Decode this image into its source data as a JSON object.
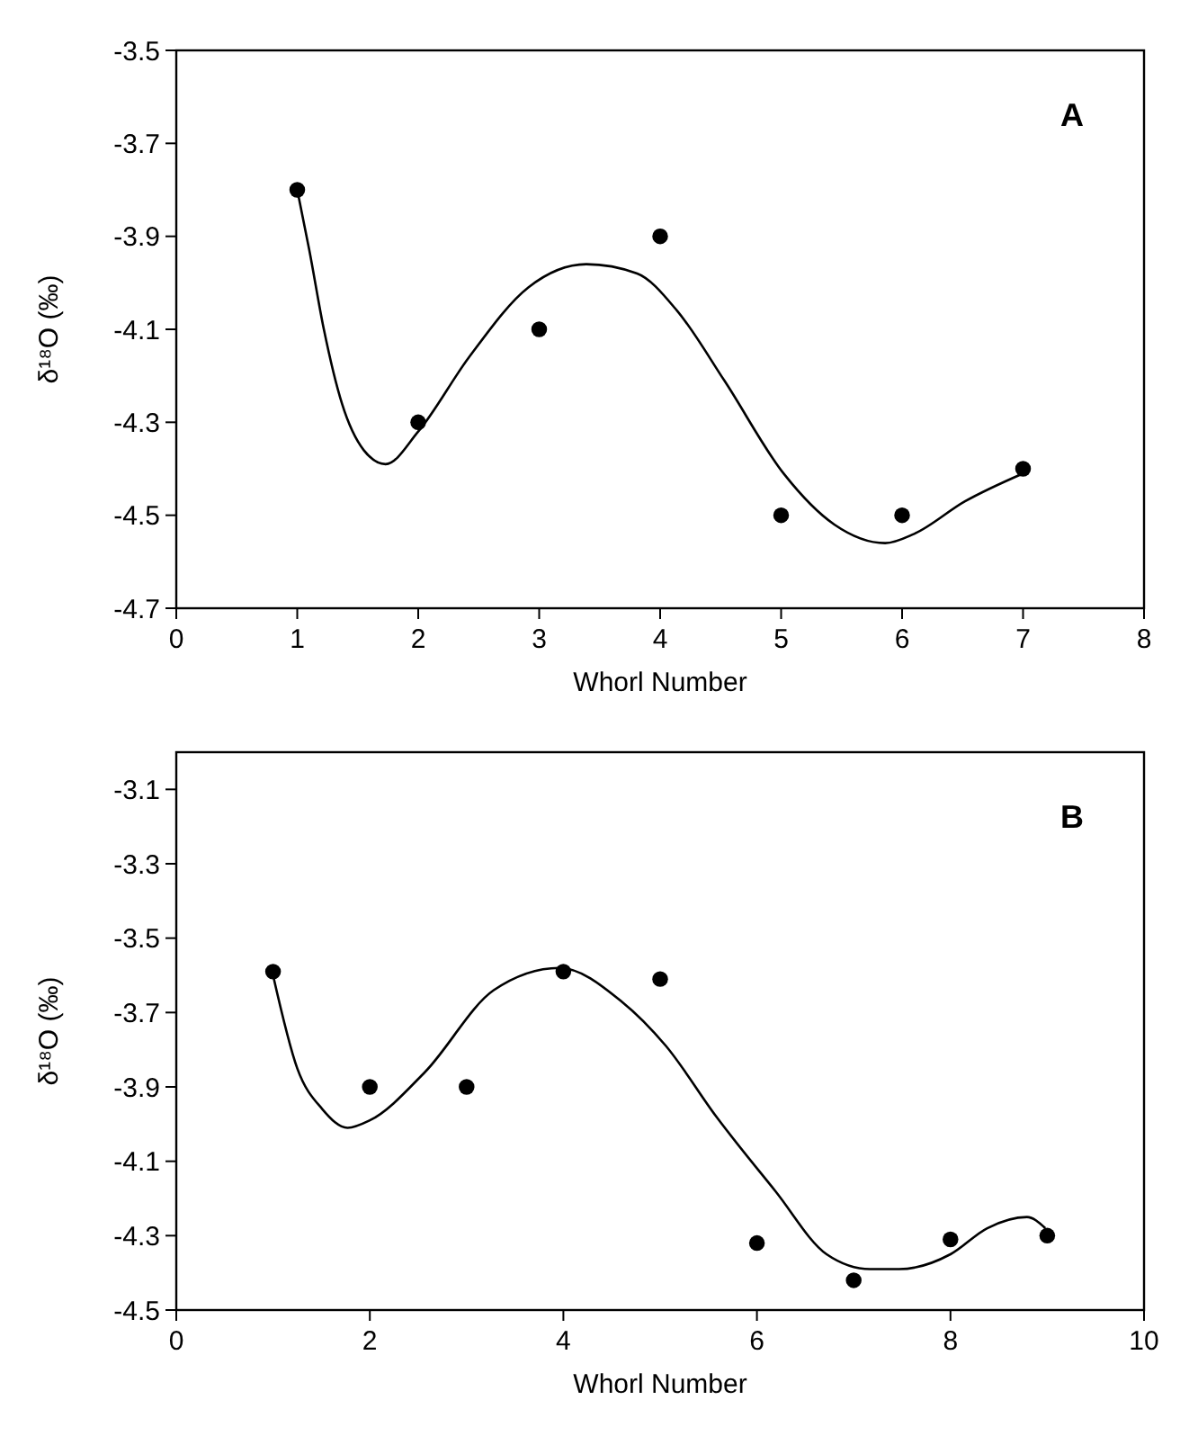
{
  "chart_data": [
    {
      "type": "scatter",
      "xlabel": "Whorl Number",
      "ylabel": "δ¹⁸O (‰)",
      "annotations": [
        "A"
      ],
      "xlim": [
        0,
        8
      ],
      "xticks": [
        0,
        1,
        2,
        3,
        4,
        5,
        6,
        7,
        8
      ],
      "ylim": [
        -4.7,
        -3.5
      ],
      "yticks": [
        -4.7,
        -4.5,
        -4.3,
        -4.1,
        -3.9,
        -3.7,
        -3.5
      ],
      "series": [
        {
          "marker": "circle",
          "color": "#000000",
          "x": [
            1,
            2,
            3,
            4,
            5,
            6,
            7
          ],
          "values": [
            -3.8,
            -4.3,
            -4.1,
            -3.9,
            -4.5,
            -4.5,
            -4.4
          ]
        },
        {
          "type": "line",
          "marker": "none",
          "color": "#000000",
          "x": [
            1.0,
            1.1,
            1.22,
            1.37,
            1.55,
            1.73,
            2.0,
            2.42,
            2.91,
            3.39,
            3.81,
            4.14,
            4.53,
            5.02,
            5.44,
            5.86,
            6.1,
            6.52,
            7.0
          ],
          "values": [
            -3.8,
            -3.93,
            -4.1,
            -4.26,
            -4.36,
            -4.39,
            -4.32,
            -4.16,
            -4.01,
            -3.96,
            -3.98,
            -4.06,
            -4.21,
            -4.41,
            -4.52,
            -4.56,
            -4.54,
            -4.47,
            -4.41
          ]
        }
      ]
    },
    {
      "type": "scatter",
      "xlabel": "Whorl Number",
      "ylabel": "δ¹⁸O (‰)",
      "annotations": [
        "B"
      ],
      "xlim": [
        0,
        10
      ],
      "xticks": [
        0,
        2,
        4,
        6,
        8,
        10
      ],
      "ylim": [
        -4.5,
        -3.0
      ],
      "yticks": [
        -4.5,
        -4.3,
        -4.1,
        -3.9,
        -3.7,
        -3.5,
        -3.3,
        -3.1
      ],
      "series": [
        {
          "marker": "circle",
          "color": "#000000",
          "x": [
            1,
            2,
            3,
            4,
            5,
            6,
            7,
            8,
            9
          ],
          "values": [
            -3.59,
            -3.9,
            -3.9,
            -3.59,
            -3.61,
            -4.32,
            -4.42,
            -4.31,
            -4.3
          ]
        },
        {
          "type": "line",
          "marker": "none",
          "color": "#000000",
          "x": [
            1.0,
            1.25,
            1.51,
            1.77,
            2.0,
            2.57,
            3.28,
            3.96,
            4.6,
            5.06,
            5.58,
            6.19,
            6.72,
            7.17,
            7.47,
            8.0,
            8.38,
            8.79,
            8.98
          ],
          "values": [
            -3.6,
            -3.85,
            -3.96,
            -4.01,
            -3.99,
            -3.86,
            -3.64,
            -3.58,
            -3.67,
            -3.79,
            -3.98,
            -4.18,
            -4.35,
            -4.39,
            -4.39,
            -4.35,
            -4.28,
            -4.25,
            -4.28
          ]
        }
      ]
    }
  ]
}
